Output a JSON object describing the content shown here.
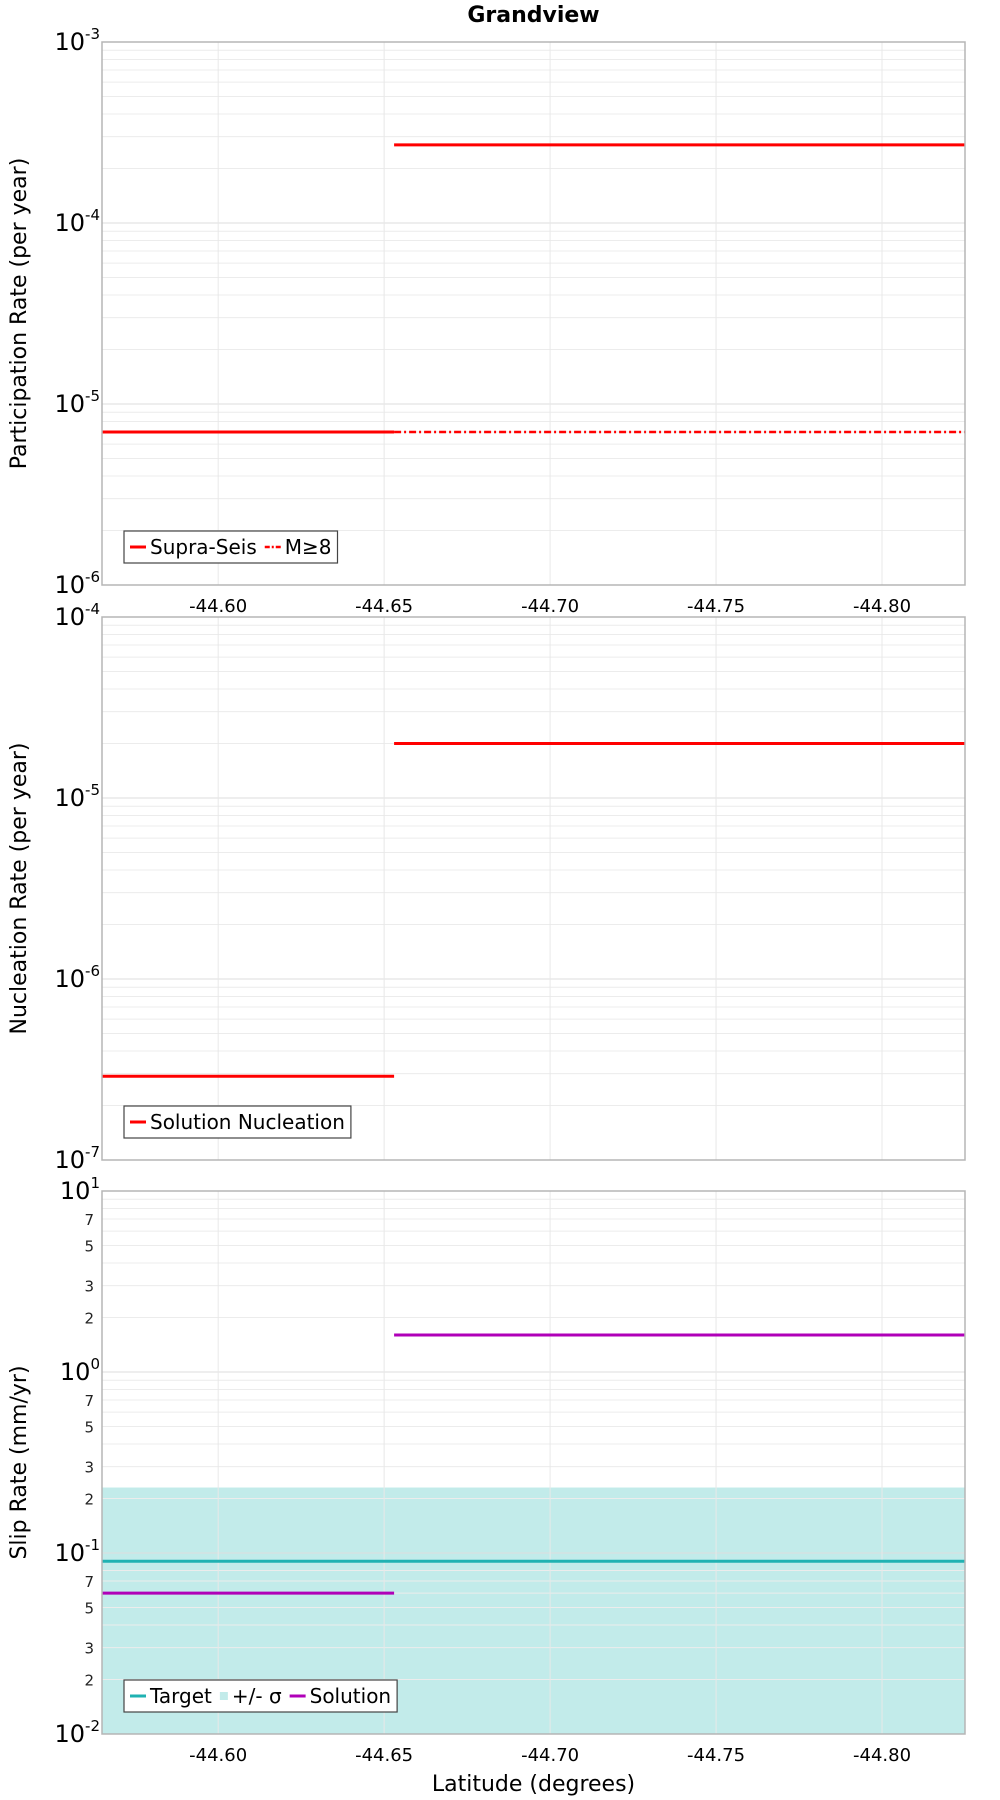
{
  "chart_data": [
    {
      "type": "line",
      "title": "Grandview",
      "xlabel": "",
      "ylabel": "Participation Rate (per year)",
      "xlim": [
        -44.565,
        -44.825
      ],
      "yscale": "log",
      "ylim": [
        1e-06,
        0.001
      ],
      "grid": true,
      "legend_position": "bottom-left",
      "x_ticks": [
        "-44.60",
        "-44.65",
        "-44.70",
        "-44.75",
        "-44.80"
      ],
      "y_ticks": [
        {
          "base": "10",
          "exp": "-6"
        },
        {
          "base": "10",
          "exp": "-5"
        },
        {
          "base": "10",
          "exp": "-4"
        },
        {
          "base": "10",
          "exp": "-3"
        }
      ],
      "series": [
        {
          "name": "Supra-Seis",
          "color": "#ff0000",
          "style": "solid",
          "segments": [
            {
              "x": [
                -44.565,
                -44.653
              ],
              "y": 7e-06
            },
            {
              "x": [
                -44.653,
                -44.825
              ],
              "y": 0.00027
            }
          ]
        },
        {
          "name": "M≥8",
          "color": "#ff0000",
          "style": "dashdot",
          "segments": [
            {
              "x": [
                -44.653,
                -44.825
              ],
              "y": 7e-06
            }
          ]
        }
      ]
    },
    {
      "type": "line",
      "title": "",
      "xlabel": "",
      "ylabel": "Nucleation Rate (per year)",
      "xlim": [
        -44.565,
        -44.825
      ],
      "yscale": "log",
      "ylim": [
        1e-07,
        0.0001
      ],
      "grid": true,
      "legend_position": "bottom-left",
      "y_ticks": [
        {
          "base": "10",
          "exp": "-7"
        },
        {
          "base": "10",
          "exp": "-6"
        },
        {
          "base": "10",
          "exp": "-5"
        },
        {
          "base": "10",
          "exp": "-4"
        }
      ],
      "series": [
        {
          "name": "Solution Nucleation",
          "color": "#ff0000",
          "style": "solid",
          "segments": [
            {
              "x": [
                -44.565,
                -44.653
              ],
              "y": 2.9e-07
            },
            {
              "x": [
                -44.653,
                -44.825
              ],
              "y": 2e-05
            }
          ]
        }
      ]
    },
    {
      "type": "line",
      "title": "",
      "xlabel": "Latitude (degrees)",
      "ylabel": "Slip Rate (mm/yr)",
      "xlim": [
        -44.565,
        -44.825
      ],
      "yscale": "log",
      "ylim": [
        0.01,
        10.0
      ],
      "grid": true,
      "legend_position": "bottom-left",
      "x_ticks": [
        "-44.60",
        "-44.65",
        "-44.70",
        "-44.75",
        "-44.80"
      ],
      "y_ticks": [
        {
          "base": "10",
          "exp": "-2"
        },
        {
          "base": "10",
          "exp": "-1"
        },
        {
          "base": "10",
          "exp": "0"
        },
        {
          "base": "10",
          "exp": "1"
        }
      ],
      "y_minor_labels": [
        "2",
        "3",
        "5",
        "7"
      ],
      "band": {
        "name": "+/- σ",
        "color": "#c2ebea",
        "y_low": 0.01,
        "y_high": 0.23,
        "x": [
          -44.565,
          -44.825
        ]
      },
      "series": [
        {
          "name": "Target",
          "color": "#1fb2b2",
          "style": "solid",
          "segments": [
            {
              "x": [
                -44.565,
                -44.825
              ],
              "y": 0.09
            }
          ]
        },
        {
          "name": "Solution",
          "color": "#b000b8",
          "style": "solid",
          "segments": [
            {
              "x": [
                -44.565,
                -44.653
              ],
              "y": 0.06
            },
            {
              "x": [
                -44.653,
                -44.825
              ],
              "y": 1.6
            }
          ]
        }
      ]
    }
  ]
}
